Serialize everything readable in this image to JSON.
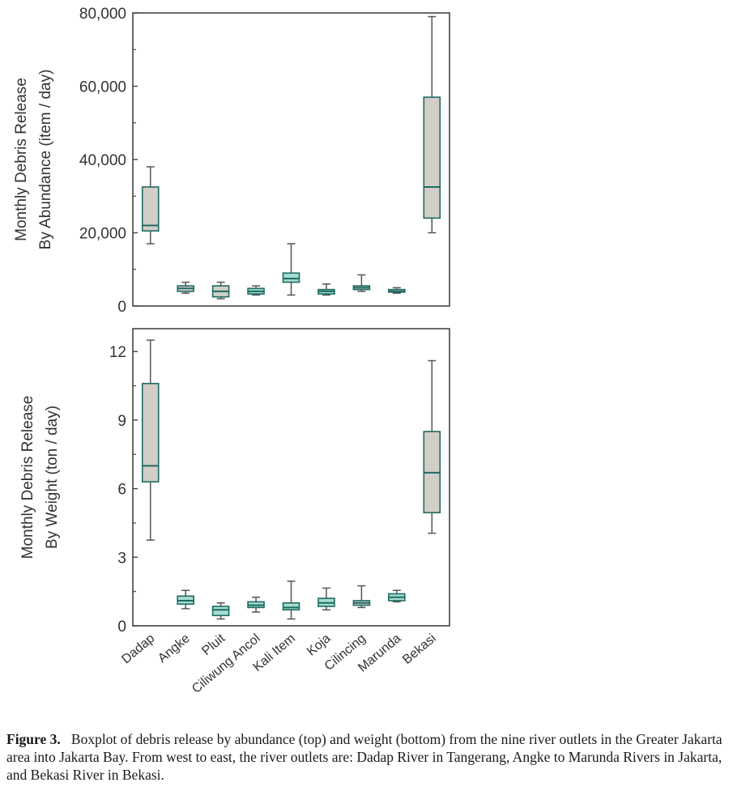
{
  "chart_data": [
    {
      "type": "boxplot",
      "ylabel": [
        "Monthly Debris Release",
        "By Abundance (item / day)"
      ],
      "ylim": [
        0,
        80000
      ],
      "yticks": [
        0,
        20000,
        40000,
        60000,
        80000
      ],
      "yticklabels": [
        "0",
        "20,000",
        "40,000",
        "60,000",
        "80,000"
      ],
      "categories": [
        "Dadap",
        "Angke",
        "Pluit",
        "Ciliwung Ancol",
        "Kali Item",
        "Koja",
        "Cilincing",
        "Marunda",
        "Bekasi"
      ],
      "boxes": [
        {
          "min": 17000,
          "q1": 20500,
          "median": 22000,
          "q3": 32500,
          "max": 38000
        },
        {
          "min": 3500,
          "q1": 4000,
          "median": 4800,
          "q3": 5500,
          "max": 6500
        },
        {
          "min": 2000,
          "q1": 2500,
          "median": 4000,
          "q3": 5500,
          "max": 6500
        },
        {
          "min": 3000,
          "q1": 3300,
          "median": 4000,
          "q3": 4800,
          "max": 5500
        },
        {
          "min": 3000,
          "q1": 6500,
          "median": 7500,
          "q3": 9000,
          "max": 17000
        },
        {
          "min": 3000,
          "q1": 3300,
          "median": 4000,
          "q3": 4500,
          "max": 6000
        },
        {
          "min": 4000,
          "q1": 4500,
          "median": 5000,
          "q3": 5500,
          "max": 8500
        },
        {
          "min": 3500,
          "q1": 3800,
          "median": 4000,
          "q3": 4500,
          "max": 5000
        },
        {
          "min": 20000,
          "q1": 24000,
          "median": 32500,
          "q3": 57000,
          "max": 79000
        }
      ]
    },
    {
      "type": "boxplot",
      "ylabel": [
        "Monthly Debris Release",
        "By Weight (ton / day)"
      ],
      "ylim": [
        0,
        13
      ],
      "yticks": [
        0,
        3,
        6,
        9,
        12
      ],
      "yticklabels": [
        "0",
        "3",
        "6",
        "9",
        "12"
      ],
      "categories": [
        "Dadap",
        "Angke",
        "Pluit",
        "Ciliwung Ancol",
        "Kali Item",
        "Koja",
        "Cilincing",
        "Marunda",
        "Bekasi"
      ],
      "boxes": [
        {
          "min": 3.75,
          "q1": 6.3,
          "median": 7.0,
          "q3": 10.6,
          "max": 12.5
        },
        {
          "min": 0.75,
          "q1": 0.95,
          "median": 1.1,
          "q3": 1.3,
          "max": 1.55
        },
        {
          "min": 0.3,
          "q1": 0.45,
          "median": 0.7,
          "q3": 0.85,
          "max": 1.0
        },
        {
          "min": 0.6,
          "q1": 0.8,
          "median": 0.9,
          "q3": 1.05,
          "max": 1.25
        },
        {
          "min": 0.3,
          "q1": 0.7,
          "median": 0.8,
          "q3": 1.0,
          "max": 1.95
        },
        {
          "min": 0.7,
          "q1": 0.85,
          "median": 1.0,
          "q3": 1.2,
          "max": 1.65
        },
        {
          "min": 0.8,
          "q1": 0.9,
          "median": 1.0,
          "q3": 1.1,
          "max": 1.75
        },
        {
          "min": 1.05,
          "q1": 1.1,
          "median": 1.25,
          "q3": 1.4,
          "max": 1.55
        },
        {
          "min": 4.05,
          "q1": 4.95,
          "median": 6.7,
          "q3": 8.5,
          "max": 11.6
        }
      ]
    }
  ],
  "colors": {
    "box_fill_gray": "#d2cdc7",
    "box_fill_teal": "#a6dccf",
    "box_edge": "#1d6b62",
    "whisker": "#555555",
    "axis": "#444444"
  },
  "caption": {
    "label": "Figure 3.",
    "text": "Boxplot of debris release by abundance (top) and weight (bottom) from the nine river outlets in the Greater Jakarta area into Jakarta Bay. From west to east, the river outlets are: Dadap River in Tangerang, Angke to Marunda Rivers in Jakarta, and Bekasi River in Bekasi."
  }
}
